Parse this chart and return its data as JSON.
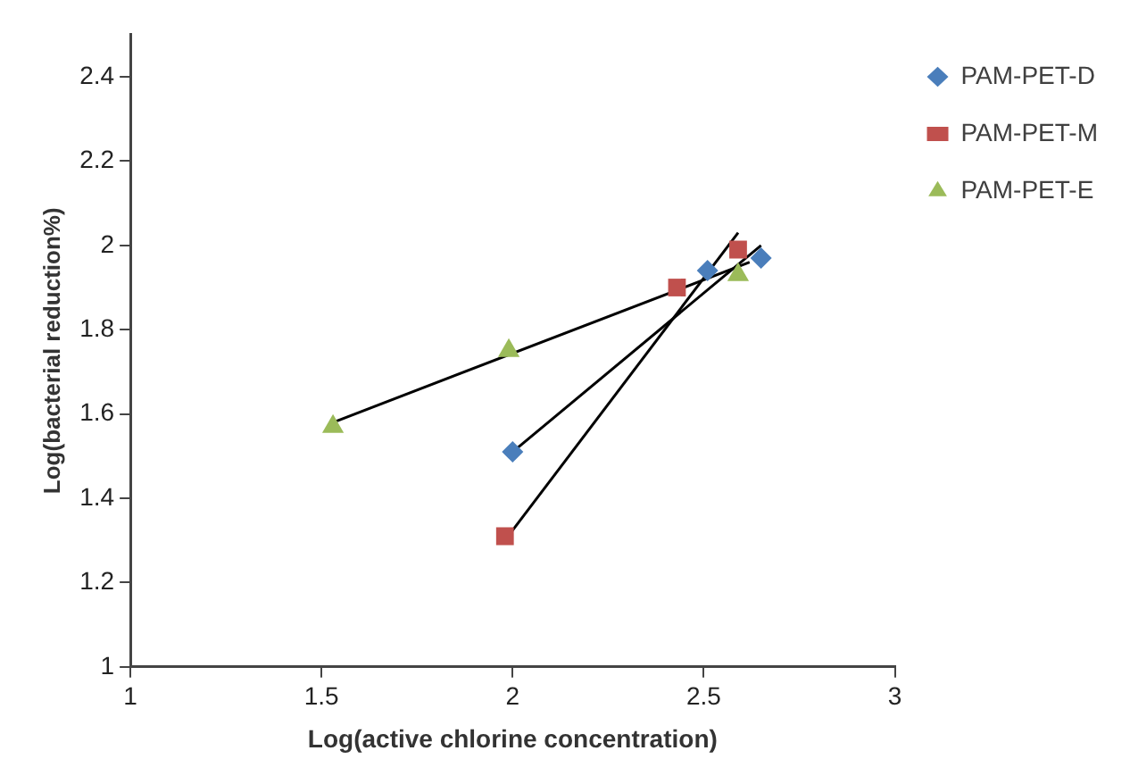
{
  "chart_data": {
    "type": "scatter",
    "xlabel": "Log(active chlorine concentration)",
    "ylabel": "Log(bacterial reduction%)",
    "xlim": [
      1,
      3
    ],
    "xticks": [
      1,
      1.5,
      2,
      2.5,
      3
    ],
    "ylim": [
      1,
      2.5
    ],
    "yticks": [
      1,
      1.2,
      1.4,
      1.6,
      1.8,
      2,
      2.2,
      2.4
    ],
    "grid": false,
    "legend": "top right",
    "series": [
      {
        "name": "PAM-PET-D",
        "color": "#4a7ebb",
        "marker": "diamond",
        "x": [
          2.0,
          2.51,
          2.65
        ],
        "values": [
          1.51,
          1.94,
          1.97
        ]
      },
      {
        "name": "PAM-PET-M",
        "color": "#c0504d",
        "marker": "square",
        "x": [
          1.98,
          2.43,
          2.59
        ],
        "values": [
          1.31,
          1.9,
          1.99
        ]
      },
      {
        "name": "PAM-PET-E",
        "color": "#9bbb59",
        "marker": "triangle",
        "x": [
          1.53,
          1.99,
          2.59
        ],
        "values": [
          1.57,
          1.75,
          1.93
        ]
      },
      {
        "type": "line",
        "color": "#000000",
        "marker": "none",
        "x": [
          2.0,
          2.65
        ],
        "values": [
          1.51,
          2.0
        ]
      },
      {
        "type": "line",
        "color": "#000000",
        "marker": "none",
        "x": [
          1.98,
          2.59
        ],
        "values": [
          1.3,
          2.03
        ]
      },
      {
        "type": "line",
        "color": "#000000",
        "marker": "none",
        "x": [
          1.53,
          2.62
        ],
        "values": [
          1.58,
          1.96
        ]
      }
    ]
  }
}
